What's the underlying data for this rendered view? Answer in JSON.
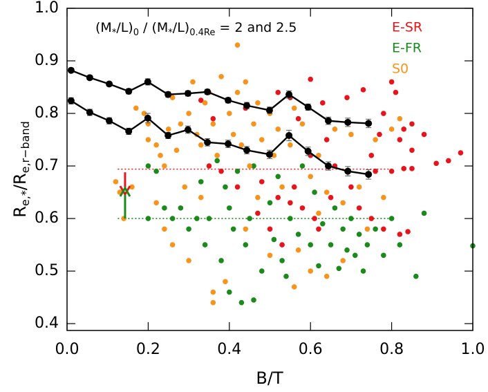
{
  "chart_data": {
    "type": "scatter",
    "annotation": [
      {
        "text": "(M"
      },
      {
        "text": "*",
        "sub": true
      },
      {
        "text": "/L)"
      },
      {
        "text": "0",
        "sub": true
      },
      {
        "text": " / (M"
      },
      {
        "text": "*",
        "sub": true
      },
      {
        "text": "/L)"
      },
      {
        "text": "0.4Re",
        "sub": true
      },
      {
        "text": " = 2 and 2.5"
      }
    ],
    "xlabel": [
      {
        "text": "B/T"
      }
    ],
    "ylabel": [
      {
        "text": "R"
      },
      {
        "text": "e,*",
        "sub": true
      },
      {
        "text": "/R"
      },
      {
        "text": "e,r−band",
        "sub": true
      }
    ],
    "xlim": [
      0,
      1
    ],
    "ylim": [
      0.387,
      1.0
    ],
    "xticks": [
      {
        "value": 0,
        "label": "0.0"
      },
      0.2,
      0.4,
      0.6,
      0.8,
      {
        "value": 1,
        "label": "1.0"
      }
    ],
    "yticks": [
      0.4,
      0.5,
      0.6,
      0.7,
      0.8,
      0.9,
      {
        "value": 1,
        "label": "1.0"
      }
    ],
    "series": [
      {
        "name": "E-SR",
        "color": "#e8141c",
        "points": [
          [
            0.52,
            0.84
          ],
          [
            0.55,
            0.83
          ],
          [
            0.6,
            0.865
          ],
          [
            0.63,
            0.82
          ],
          [
            0.69,
            0.83
          ],
          [
            0.73,
            0.845
          ],
          [
            0.8,
            0.86
          ],
          [
            0.81,
            0.84
          ],
          [
            0.78,
            0.8
          ],
          [
            0.83,
            0.77
          ],
          [
            0.85,
            0.78
          ],
          [
            0.82,
            0.75
          ],
          [
            0.85,
            0.73
          ],
          [
            0.88,
            0.76
          ],
          [
            0.77,
            0.76
          ],
          [
            0.75,
            0.72
          ],
          [
            0.94,
            0.71
          ],
          [
            0.97,
            0.725
          ],
          [
            0.91,
            0.705
          ],
          [
            0.85,
            0.695
          ],
          [
            0.83,
            0.695
          ],
          [
            0.8,
            0.69
          ],
          [
            0.76,
            0.69
          ],
          [
            0.66,
            0.7
          ],
          [
            0.6,
            0.72
          ],
          [
            0.64,
            0.75
          ],
          [
            0.57,
            0.79
          ],
          [
            0.44,
            0.81
          ],
          [
            0.33,
            0.825
          ],
          [
            0.36,
            0.79
          ],
          [
            0.48,
            0.67
          ],
          [
            0.52,
            0.64
          ],
          [
            0.55,
            0.63
          ],
          [
            0.58,
            0.62
          ],
          [
            0.65,
            0.64
          ],
          [
            0.7,
            0.66
          ],
          [
            0.42,
            0.66
          ],
          [
            0.47,
            0.61
          ],
          [
            0.62,
            0.58
          ],
          [
            0.78,
            0.58
          ],
          [
            0.82,
            0.57
          ],
          [
            0.84,
            0.575
          ],
          [
            0.75,
            0.6
          ],
          [
            0.53,
            0.55
          ],
          [
            0.5,
            0.58
          ],
          [
            0.61,
            0.6
          ],
          [
            0.72,
            0.62
          ],
          [
            0.38,
            0.69
          ],
          [
            0.35,
            0.7
          ],
          [
            0.56,
            0.66
          ]
        ]
      },
      {
        "name": "E-FR",
        "color": "#1a8a1a",
        "points": [
          [
            0.2,
            0.6
          ],
          [
            0.22,
            0.69
          ],
          [
            0.26,
            0.6
          ],
          [
            0.28,
            0.62
          ],
          [
            0.3,
            0.58
          ],
          [
            0.32,
            0.6
          ],
          [
            0.33,
            0.67
          ],
          [
            0.35,
            0.6
          ],
          [
            0.37,
            0.71
          ],
          [
            0.39,
            0.66
          ],
          [
            0.4,
            0.62
          ],
          [
            0.41,
            0.58
          ],
          [
            0.42,
            0.69
          ],
          [
            0.44,
            0.55
          ],
          [
            0.45,
            0.6
          ],
          [
            0.46,
            0.7
          ],
          [
            0.48,
            0.5
          ],
          [
            0.5,
            0.63
          ],
          [
            0.51,
            0.56
          ],
          [
            0.52,
            0.68
          ],
          [
            0.53,
            0.52
          ],
          [
            0.55,
            0.6
          ],
          [
            0.57,
            0.57
          ],
          [
            0.58,
            0.7
          ],
          [
            0.6,
            0.55
          ],
          [
            0.61,
            0.65
          ],
          [
            0.62,
            0.51
          ],
          [
            0.63,
            0.59
          ],
          [
            0.65,
            0.55
          ],
          [
            0.66,
            0.62
          ],
          [
            0.67,
            0.505
          ],
          [
            0.68,
            0.58
          ],
          [
            0.69,
            0.54
          ],
          [
            0.7,
            0.6
          ],
          [
            0.71,
            0.53
          ],
          [
            0.72,
            0.57
          ],
          [
            0.73,
            0.5
          ],
          [
            0.74,
            0.55
          ],
          [
            0.76,
            0.58
          ],
          [
            0.78,
            0.53
          ],
          [
            0.8,
            0.6
          ],
          [
            0.82,
            0.55
          ],
          [
            0.86,
            0.49
          ],
          [
            0.88,
            0.61
          ],
          [
            1.0,
            0.548
          ],
          [
            0.43,
            0.44
          ],
          [
            0.46,
            0.445
          ],
          [
            0.4,
            0.46
          ],
          [
            0.38,
            0.52
          ],
          [
            0.34,
            0.55
          ],
          [
            0.24,
            0.62
          ],
          [
            0.2,
            0.7
          ],
          [
            0.54,
            0.49
          ]
        ]
      },
      {
        "name": "S0",
        "color": "#f7941d",
        "points": [
          [
            0.12,
            0.67
          ],
          [
            0.13,
            0.65
          ],
          [
            0.14,
            0.6
          ],
          [
            0.16,
            0.66
          ],
          [
            0.17,
            0.81
          ],
          [
            0.19,
            0.8
          ],
          [
            0.2,
            0.78
          ],
          [
            0.2,
            0.75
          ],
          [
            0.22,
            0.74
          ],
          [
            0.23,
            0.72
          ],
          [
            0.24,
            0.7
          ],
          [
            0.25,
            0.77
          ],
          [
            0.26,
            0.83
          ],
          [
            0.27,
            0.73
          ],
          [
            0.28,
            0.78
          ],
          [
            0.3,
            0.8
          ],
          [
            0.31,
            0.86
          ],
          [
            0.32,
            0.76
          ],
          [
            0.33,
            0.74
          ],
          [
            0.34,
            0.82
          ],
          [
            0.35,
            0.84
          ],
          [
            0.36,
            0.78
          ],
          [
            0.37,
            0.72
          ],
          [
            0.38,
            0.87
          ],
          [
            0.4,
            0.8
          ],
          [
            0.41,
            0.76
          ],
          [
            0.42,
            0.84
          ],
          [
            0.43,
            0.74
          ],
          [
            0.44,
            0.86
          ],
          [
            0.45,
            0.7
          ],
          [
            0.46,
            0.78
          ],
          [
            0.47,
            0.82
          ],
          [
            0.48,
            0.75
          ],
          [
            0.5,
            0.8
          ],
          [
            0.51,
            0.72
          ],
          [
            0.52,
            0.77
          ],
          [
            0.53,
            0.66
          ],
          [
            0.55,
            0.74
          ],
          [
            0.56,
            0.81
          ],
          [
            0.58,
            0.78
          ],
          [
            0.6,
            0.68
          ],
          [
            0.62,
            0.72
          ],
          [
            0.64,
            0.65
          ],
          [
            0.66,
            0.77
          ],
          [
            0.68,
            0.63
          ],
          [
            0.7,
            0.76
          ],
          [
            0.72,
            0.66
          ],
          [
            0.74,
            0.58
          ],
          [
            0.76,
            0.75
          ],
          [
            0.78,
            0.64
          ],
          [
            0.8,
            0.77
          ],
          [
            0.82,
            0.79
          ],
          [
            0.26,
            0.55
          ],
          [
            0.3,
            0.52
          ],
          [
            0.36,
            0.44
          ],
          [
            0.39,
            0.48
          ],
          [
            0.44,
            0.58
          ],
          [
            0.5,
            0.53
          ],
          [
            0.56,
            0.47
          ],
          [
            0.6,
            0.5
          ],
          [
            0.64,
            0.49
          ],
          [
            0.68,
            0.52
          ],
          [
            0.33,
            0.64
          ],
          [
            0.29,
            0.66
          ],
          [
            0.24,
            0.58
          ],
          [
            0.22,
            0.63
          ],
          [
            0.47,
            0.64
          ],
          [
            0.57,
            0.54
          ],
          [
            0.62,
            0.61
          ],
          [
            0.42,
            0.93
          ],
          [
            0.36,
            0.46
          ]
        ]
      }
    ],
    "lines": [
      {
        "color": "#000000",
        "x": [
          0.01,
          0.056,
          0.104,
          0.152,
          0.199,
          0.249,
          0.298,
          0.346,
          0.397,
          0.443,
          0.499,
          0.547,
          0.594,
          0.644,
          0.692,
          0.743
        ],
        "values": [
          0.882,
          0.868,
          0.856,
          0.842,
          0.86,
          0.836,
          0.838,
          0.841,
          0.825,
          0.815,
          0.806,
          0.836,
          0.812,
          0.786,
          0.783,
          0.781
        ],
        "errors": [
          0.004,
          0.004,
          0.004,
          0.005,
          0.006,
          0.005,
          0.005,
          0.005,
          0.005,
          0.006,
          0.006,
          0.007,
          0.006,
          0.007,
          0.008,
          0.008
        ]
      },
      {
        "color": "#000000",
        "x": [
          0.01,
          0.056,
          0.104,
          0.152,
          0.199,
          0.249,
          0.298,
          0.346,
          0.397,
          0.443,
          0.499,
          0.547,
          0.594,
          0.644,
          0.692,
          0.743
        ],
        "values": [
          0.824,
          0.802,
          0.786,
          0.766,
          0.791,
          0.758,
          0.769,
          0.745,
          0.742,
          0.73,
          0.722,
          0.758,
          0.728,
          0.7,
          0.69,
          0.684
        ],
        "errors": [
          0.006,
          0.006,
          0.006,
          0.006,
          0.009,
          0.006,
          0.007,
          0.007,
          0.007,
          0.007,
          0.008,
          0.01,
          0.008,
          0.008,
          0.009,
          0.009
        ]
      }
    ],
    "reference_lines": [
      {
        "y": 0.694,
        "x": [
          0.125,
          0.8
        ],
        "color": "#e8141c"
      },
      {
        "y": 0.6,
        "x": [
          0.125,
          0.8
        ],
        "color": "#1a8a1a"
      }
    ],
    "arrows": [
      {
        "x": 0.143,
        "y": [
          0.688,
          0.646
        ],
        "color": "#e8141c"
      },
      {
        "x": 0.143,
        "y": [
          0.6,
          0.658
        ],
        "color": "#1a8a1a"
      }
    ]
  }
}
